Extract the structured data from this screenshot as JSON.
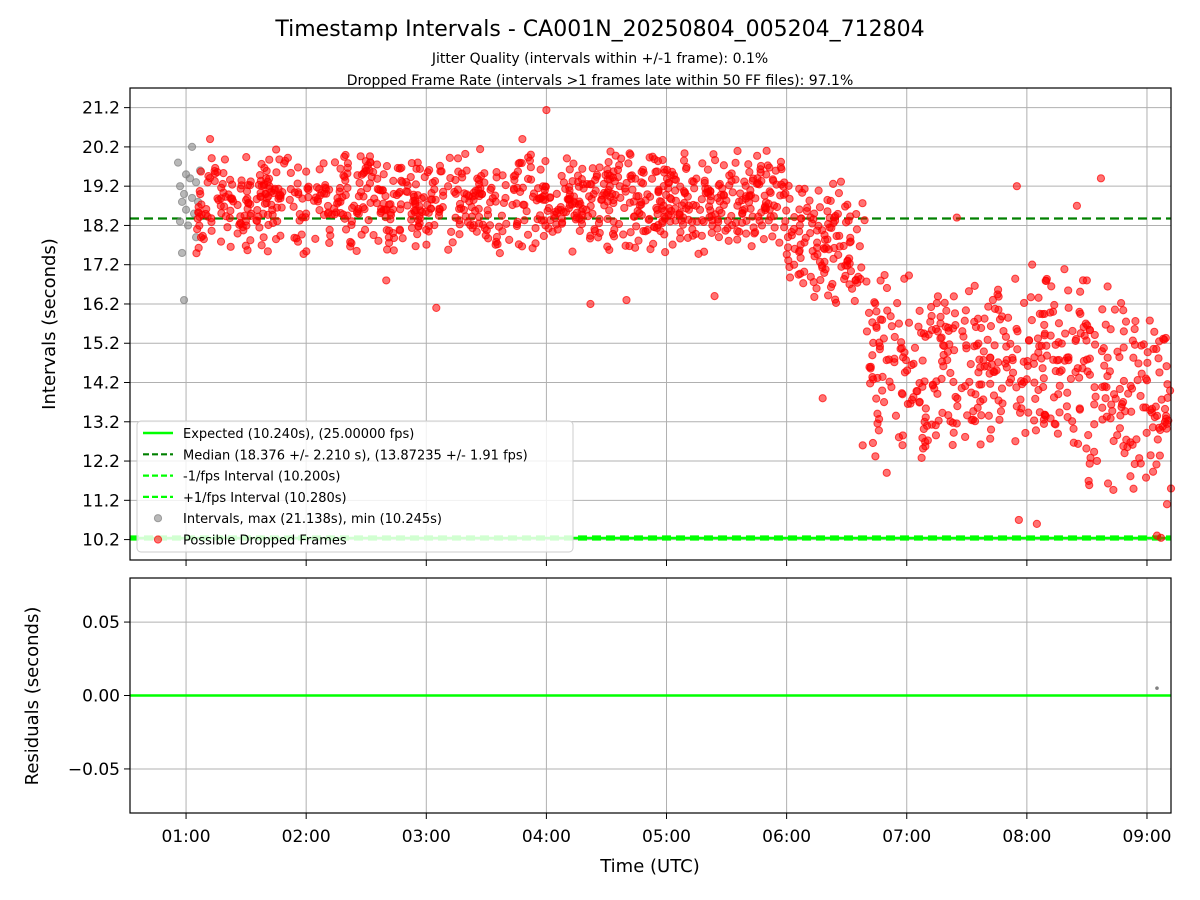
{
  "title": "Timestamp Intervals - CA001N_20250804_005204_712804",
  "subtitle_1": "Jitter Quality (intervals within +/-1 frame): 0.1%",
  "subtitle_2": "Dropped Frame Rate (intervals >1 frames late within 50 FF files): 97.1%",
  "colors": {
    "expected": "#00ff00",
    "median": "#008000",
    "fps_bounds": "#00ff00",
    "intervals": "#808080",
    "dropped": "#ff0000",
    "grid": "#b0b0b0"
  },
  "chart_data": [
    {
      "type": "scatter",
      "title": "Timestamp Intervals - CA001N_20250804_005204_712804",
      "xlabel": "",
      "ylabel": "Intervals (seconds)",
      "xlim": [
        "00:32",
        "09:12"
      ],
      "ylim": [
        9.68,
        21.7
      ],
      "y_ticks": [
        "10.2",
        "11.2",
        "12.2",
        "13.2",
        "14.2",
        "15.2",
        "16.2",
        "17.2",
        "18.2",
        "19.2",
        "20.2",
        "21.2"
      ],
      "grid": true,
      "legend_position": "lower-left",
      "legend": [
        {
          "label": "Expected (10.240s), (25.00000 fps)",
          "kind": "line",
          "color": "#00ff00"
        },
        {
          "label": "Median (18.376 +/- 2.210 s), (13.87235 +/- 1.91 fps)",
          "kind": "dashed",
          "color": "#008000"
        },
        {
          "label": "-1/fps Interval (10.200s)",
          "kind": "dashed",
          "color": "#00ff00"
        },
        {
          "label": "+1/fps Interval (10.280s)",
          "kind": "dashed",
          "color": "#00ff00"
        },
        {
          "label": "Intervals, max (21.138s), min (10.245s)",
          "kind": "marker",
          "color": "#808080"
        },
        {
          "label": "Possible Dropped Frames",
          "kind": "marker",
          "color": "#ff0000"
        }
      ],
      "reference_lines": {
        "expected": 10.24,
        "median": 18.376,
        "minus_fps": 10.2,
        "plus_fps": 10.28
      },
      "series": [
        {
          "name": "Intervals, max (21.138s), min (10.245s)",
          "color": "#808080",
          "points": [
            [
              "00:56",
              19.8
            ],
            [
              "00:57",
              19.2
            ],
            [
              "00:57",
              18.3
            ],
            [
              "00:58",
              18.8
            ],
            [
              "00:58",
              17.5
            ],
            [
              "00:59",
              16.3
            ],
            [
              "00:59",
              19.0
            ],
            [
              "01:00",
              18.6
            ],
            [
              "01:00",
              19.5
            ],
            [
              "01:01",
              18.2
            ],
            [
              "01:02",
              19.4
            ],
            [
              "01:03",
              18.9
            ],
            [
              "01:03",
              20.2
            ],
            [
              "01:04",
              18.5
            ],
            [
              "01:05",
              19.3
            ],
            [
              "01:05",
              17.9
            ],
            [
              "01:06",
              18.8
            ],
            [
              "01:07",
              19.6
            ]
          ]
        },
        {
          "name": "Possible Dropped Frames",
          "color": "#ff0000",
          "segments": [
            {
              "from": "01:05",
              "to": "06:00",
              "min": 17.4,
              "max": 20.2
            },
            {
              "from": "06:00",
              "to": "06:40",
              "min": 16.0,
              "max": 19.6
            },
            {
              "from": "06:40",
              "to": "07:20",
              "min": 12.0,
              "max": 17.2
            },
            {
              "from": "07:20",
              "to": "08:30",
              "min": 12.2,
              "max": 17.4
            },
            {
              "from": "08:30",
              "to": "09:12",
              "min": 11.0,
              "max": 17.0
            }
          ],
          "points": [
            [
              "01:12",
              20.4
            ],
            [
              "03:48",
              20.4
            ],
            [
              "04:00",
              21.138
            ],
            [
              "04:42",
              20.0
            ],
            [
              "05:50",
              20.1
            ],
            [
              "02:40",
              16.8
            ],
            [
              "03:05",
              16.1
            ],
            [
              "04:22",
              16.2
            ],
            [
              "04:40",
              16.3
            ],
            [
              "05:24",
              16.4
            ],
            [
              "06:18",
              13.8
            ],
            [
              "06:38",
              12.6
            ],
            [
              "06:50",
              11.9
            ],
            [
              "07:25",
              18.4
            ],
            [
              "07:55",
              19.2
            ],
            [
              "07:56",
              10.7
            ],
            [
              "08:05",
              10.6
            ],
            [
              "08:25",
              18.7
            ],
            [
              "08:37",
              19.4
            ],
            [
              "09:05",
              10.3
            ],
            [
              "09:07",
              10.245
            ],
            [
              "09:10",
              11.1
            ],
            [
              "09:12",
              11.5
            ]
          ]
        }
      ]
    },
    {
      "type": "line",
      "xlabel": "Time (UTC)",
      "ylabel": "Residuals (seconds)",
      "xlim": [
        "00:32",
        "09:12"
      ],
      "ylim": [
        -0.08,
        0.08
      ],
      "x_ticks": [
        "01:00",
        "02:00",
        "03:00",
        "04:00",
        "05:00",
        "06:00",
        "07:00",
        "08:00",
        "09:00"
      ],
      "y_ticks": [
        "0.05",
        "0.00",
        "−0.05"
      ],
      "grid": true,
      "zero_line_color": "#00ff00",
      "series": [
        {
          "color": "#808080",
          "points": [
            [
              "09:05",
              0.005
            ]
          ]
        }
      ]
    }
  ]
}
